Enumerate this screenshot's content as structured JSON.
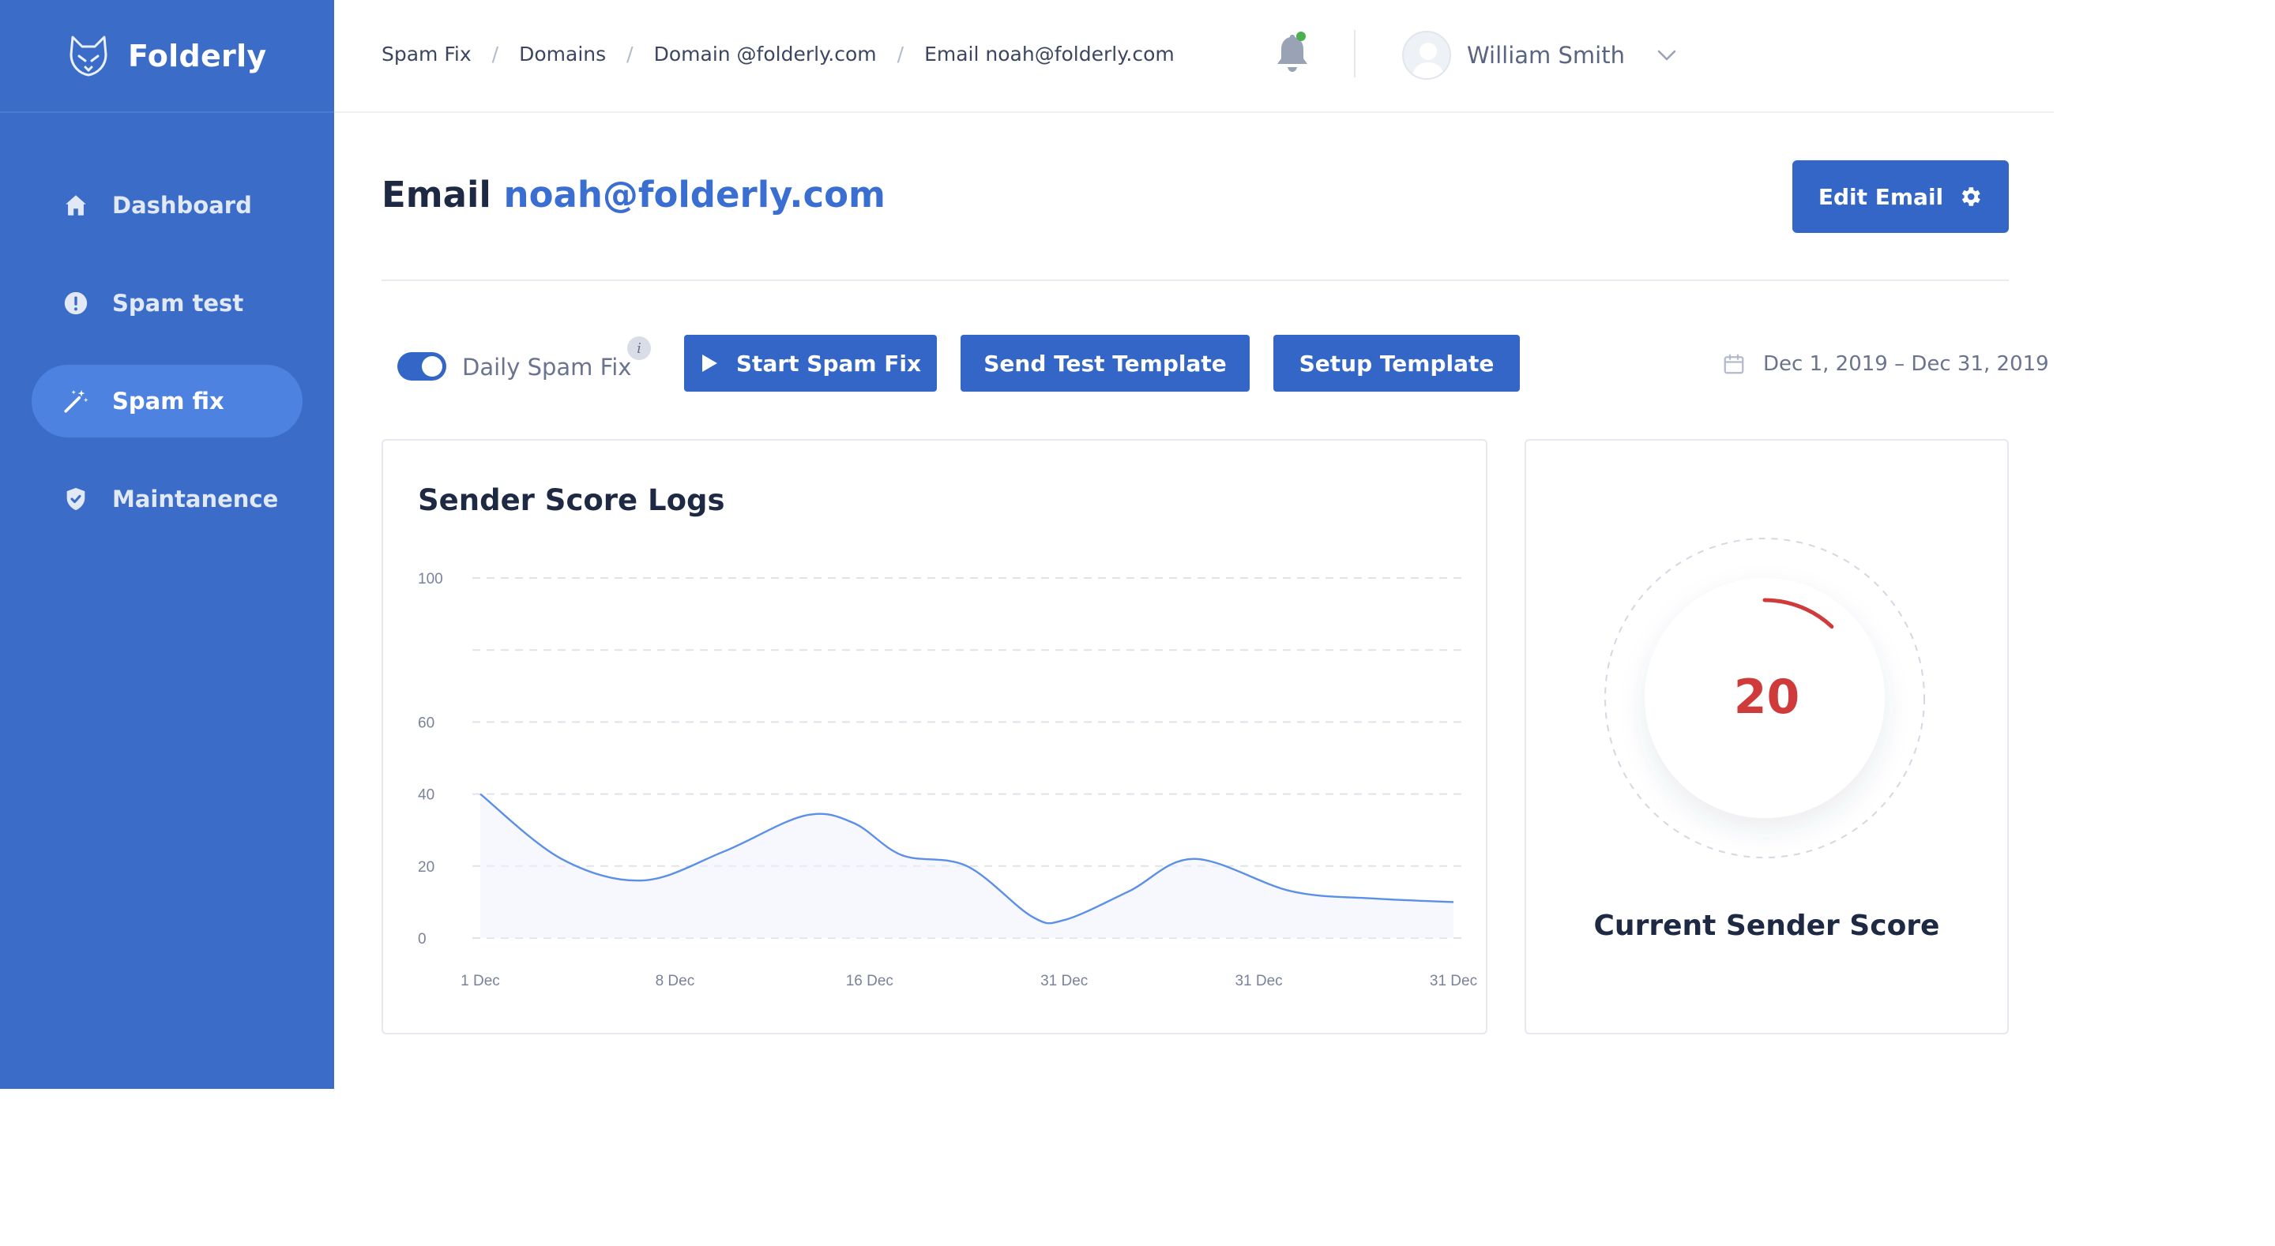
{
  "brand": {
    "name": "Folderly",
    "logo_icon": "fox-logo-icon"
  },
  "sidebar": {
    "items": [
      {
        "label": "Dashboard",
        "icon": "home-icon",
        "active": false
      },
      {
        "label": "Spam test",
        "icon": "alert-circle-icon",
        "active": false
      },
      {
        "label": "Spam fix",
        "icon": "magic-wand-icon",
        "active": true
      },
      {
        "label": "Maintanence",
        "icon": "shield-check-icon",
        "active": false
      }
    ]
  },
  "breadcrumb": [
    "Spam Fix",
    "Domains",
    "Domain @folderly.com",
    "Email noah@folderly.com"
  ],
  "breadcrumb_separator": "/",
  "user": {
    "name": "William Smith",
    "has_notification": true
  },
  "page": {
    "title_prefix": "Email",
    "title_email": "noah@folderly.com",
    "edit_button": "Edit Email"
  },
  "controls": {
    "toggle_label": "Daily Spam Fix",
    "toggle_on": true,
    "info_glyph": "i",
    "start_button": "Start Spam Fix",
    "send_button": "Send Test Template",
    "setup_button": "Setup Template",
    "date_range": "Dec 1, 2019 – Dec 31, 2019"
  },
  "chart_card": {
    "title": "Sender Score Logs"
  },
  "chart_data": {
    "type": "line",
    "title": "Sender Score Logs",
    "x_labels": [
      "1 Dec",
      "8 Dec",
      "16 Dec",
      "31 Dec",
      "31 Dec",
      "31 Dec"
    ],
    "y_ticks": [
      0,
      20,
      40,
      60,
      100
    ],
    "ylim": [
      0,
      100
    ],
    "grid": true,
    "series": [
      {
        "color": "#5b8fe8",
        "points": [
          [
            0.0,
            40
          ],
          [
            0.5,
            22
          ],
          [
            1.0,
            16
          ],
          [
            1.5,
            24
          ],
          [
            2.0,
            34
          ],
          [
            2.3,
            32
          ],
          [
            2.6,
            23
          ],
          [
            3.0,
            20
          ],
          [
            3.4,
            6
          ],
          [
            3.6,
            5
          ],
          [
            4.0,
            13
          ],
          [
            4.4,
            22
          ],
          [
            5.0,
            13
          ],
          [
            5.5,
            11
          ],
          [
            6.0,
            10
          ]
        ]
      }
    ]
  },
  "score_card": {
    "value": "20",
    "value_numeric": 20,
    "max": 100,
    "label": "Current Sender Score",
    "arc_color": "#cf3b3b"
  }
}
